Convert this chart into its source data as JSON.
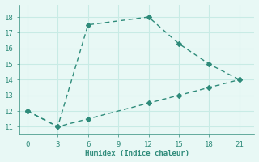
{
  "line1_x": [
    0,
    3,
    6,
    12,
    15,
    18,
    21
  ],
  "line1_y": [
    12,
    11,
    17.5,
    18,
    16.3,
    15,
    14
  ],
  "line2_x": [
    0,
    3,
    6,
    12,
    15,
    18,
    21
  ],
  "line2_y": [
    12,
    11,
    11.5,
    12.5,
    13,
    13.5,
    14
  ],
  "line_color": "#2e8b7a",
  "bg_color": "#e8f8f5",
  "grid_color": "#c8ebe5",
  "xlabel": "Humidex (Indice chaleur)",
  "xlim": [
    -0.8,
    22.5
  ],
  "ylim": [
    10.5,
    18.8
  ],
  "xticks": [
    0,
    3,
    6,
    9,
    12,
    15,
    18,
    21
  ],
  "yticks": [
    11,
    12,
    13,
    14,
    15,
    16,
    17,
    18
  ],
  "marker": "D",
  "marker_size": 3,
  "line_width": 1.0
}
